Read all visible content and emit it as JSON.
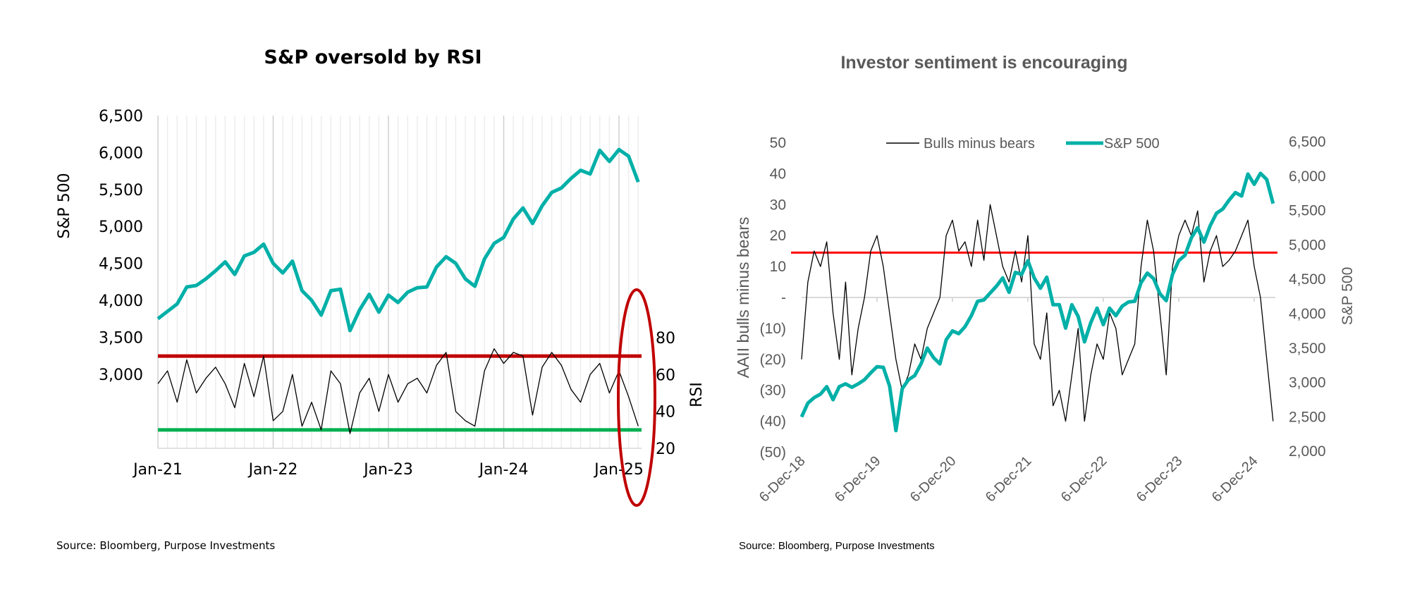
{
  "chart_data": [
    {
      "type": "line",
      "title": "S&P oversold by RSI",
      "ylabel": "S&P 500",
      "y2label": "RSI",
      "xticks": [
        "Jan-21",
        "Jan-22",
        "Jan-23",
        "Jan-24",
        "Jan-25"
      ],
      "yticks": [
        "6,500",
        "6,000",
        "5,500",
        "5,000",
        "4,500",
        "4,000",
        "3,500",
        "3,000"
      ],
      "y2ticks": [
        "80",
        "60",
        "40",
        "20"
      ],
      "ylim": [
        2500,
        6500
      ],
      "y2lim": [
        20,
        80
      ],
      "grid": "vertical",
      "x": [
        "2021-01",
        "2021-02",
        "2021-03",
        "2021-04",
        "2021-05",
        "2021-06",
        "2021-07",
        "2021-08",
        "2021-09",
        "2021-10",
        "2021-11",
        "2021-12",
        "2022-01",
        "2022-02",
        "2022-03",
        "2022-04",
        "2022-05",
        "2022-06",
        "2022-07",
        "2022-08",
        "2022-09",
        "2022-10",
        "2022-11",
        "2022-12",
        "2023-01",
        "2023-02",
        "2023-03",
        "2023-04",
        "2023-05",
        "2023-06",
        "2023-07",
        "2023-08",
        "2023-09",
        "2023-10",
        "2023-11",
        "2023-12",
        "2024-01",
        "2024-02",
        "2024-03",
        "2024-04",
        "2024-05",
        "2024-06",
        "2024-07",
        "2024-08",
        "2024-09",
        "2024-10",
        "2024-11",
        "2024-12",
        "2025-01",
        "2025-02",
        "2025-03"
      ],
      "series": [
        {
          "name": "S&P 500",
          "axis": "left",
          "color": "#00B0A8",
          "values": [
            3750,
            3850,
            3950,
            4180,
            4200,
            4290,
            4400,
            4520,
            4350,
            4600,
            4650,
            4760,
            4500,
            4370,
            4530,
            4130,
            4000,
            3800,
            4130,
            4150,
            3590,
            3870,
            4080,
            3840,
            4070,
            3970,
            4110,
            4170,
            4180,
            4450,
            4590,
            4500,
            4290,
            4190,
            4560,
            4770,
            4850,
            5100,
            5250,
            5040,
            5280,
            5460,
            5520,
            5650,
            5760,
            5710,
            6030,
            5880,
            6040,
            5950,
            5600
          ]
        },
        {
          "name": "RSI",
          "axis": "right",
          "color": "#000000",
          "values": [
            55,
            62,
            45,
            68,
            50,
            58,
            64,
            55,
            42,
            66,
            48,
            70,
            35,
            40,
            60,
            32,
            45,
            30,
            62,
            55,
            28,
            50,
            58,
            40,
            60,
            45,
            55,
            58,
            50,
            65,
            72,
            40,
            35,
            32,
            62,
            74,
            66,
            72,
            70,
            38,
            64,
            72,
            65,
            52,
            45,
            60,
            66,
            50,
            62,
            48,
            32
          ]
        }
      ],
      "reference_lines": [
        {
          "axis": "right",
          "value": 70,
          "color": "#C00000"
        },
        {
          "axis": "right",
          "value": 30,
          "color": "#00B050"
        }
      ],
      "annotation": {
        "shape": "ellipse",
        "color": "#C00000",
        "around": "Jan-25"
      },
      "source": "Source: Bloomberg, Purpose Investments"
    },
    {
      "type": "line",
      "title": "Investor sentiment is encouraging",
      "ylabel": "AAII bulls minus bears",
      "y2label": "S&P 500",
      "xticks": [
        "6-Dec-18",
        "6-Dec-19",
        "6-Dec-20",
        "6-Dec-21",
        "6-Dec-22",
        "6-Dec-23",
        "6-Dec-24"
      ],
      "yticks": [
        "50",
        "40",
        "30",
        "20",
        "10",
        "-",
        "(10)",
        "(20)",
        "(30)",
        "(40)",
        "(50)"
      ],
      "y2ticks": [
        "6,500",
        "6,000",
        "5,500",
        "5,000",
        "4,500",
        "4,000",
        "3,500",
        "3,000",
        "2,500",
        "2,000"
      ],
      "ylim": [
        -50,
        50
      ],
      "y2lim": [
        2000,
        6500
      ],
      "legend": "top",
      "x": [
        "2018-12",
        "2019-01",
        "2019-02",
        "2019-03",
        "2019-04",
        "2019-05",
        "2019-06",
        "2019-07",
        "2019-08",
        "2019-09",
        "2019-10",
        "2019-11",
        "2019-12",
        "2020-01",
        "2020-02",
        "2020-03",
        "2020-04",
        "2020-05",
        "2020-06",
        "2020-07",
        "2020-08",
        "2020-09",
        "2020-10",
        "2020-11",
        "2020-12",
        "2021-01",
        "2021-02",
        "2021-03",
        "2021-04",
        "2021-05",
        "2021-06",
        "2021-07",
        "2021-08",
        "2021-09",
        "2021-10",
        "2021-11",
        "2021-12",
        "2022-01",
        "2022-02",
        "2022-03",
        "2022-04",
        "2022-05",
        "2022-06",
        "2022-07",
        "2022-08",
        "2022-09",
        "2022-10",
        "2022-11",
        "2022-12",
        "2023-01",
        "2023-02",
        "2023-03",
        "2023-04",
        "2023-05",
        "2023-06",
        "2023-07",
        "2023-08",
        "2023-09",
        "2023-10",
        "2023-11",
        "2023-12",
        "2024-01",
        "2024-02",
        "2024-03",
        "2024-04",
        "2024-05",
        "2024-06",
        "2024-07",
        "2024-08",
        "2024-09",
        "2024-10",
        "2024-11",
        "2024-12",
        "2025-01",
        "2025-02",
        "2025-03"
      ],
      "series": [
        {
          "name": "Bulls minus bears",
          "axis": "left",
          "color": "#000000",
          "values": [
            -20,
            5,
            15,
            10,
            18,
            -5,
            -20,
            5,
            -25,
            -10,
            0,
            15,
            20,
            10,
            -5,
            -20,
            -30,
            -25,
            -15,
            -20,
            -10,
            -5,
            0,
            20,
            25,
            15,
            18,
            10,
            25,
            12,
            30,
            20,
            10,
            5,
            15,
            5,
            20,
            -15,
            -20,
            -5,
            -35,
            -30,
            -40,
            -25,
            -10,
            -40,
            -25,
            -15,
            -20,
            -5,
            -10,
            -25,
            -20,
            -15,
            10,
            25,
            15,
            -5,
            -25,
            10,
            20,
            25,
            20,
            28,
            5,
            15,
            20,
            10,
            12,
            15,
            20,
            25,
            10,
            0,
            -20,
            -40
          ]
        },
        {
          "name": "S&P 500",
          "axis": "right",
          "color": "#00B0A8",
          "values": [
            2500,
            2700,
            2780,
            2830,
            2940,
            2750,
            2940,
            2980,
            2930,
            2980,
            3040,
            3140,
            3230,
            3220,
            2950,
            2300,
            2910,
            3040,
            3100,
            3270,
            3500,
            3360,
            3270,
            3620,
            3750,
            3710,
            3810,
            3970,
            4180,
            4200,
            4300,
            4400,
            4520,
            4310,
            4600,
            4570,
            4770,
            4520,
            4370,
            4530,
            4130,
            4130,
            3790,
            4130,
            3960,
            3590,
            3870,
            4080,
            3840,
            4080,
            3970,
            4110,
            4170,
            4180,
            4450,
            4590,
            4510,
            4290,
            4190,
            4570,
            4770,
            4850,
            5100,
            5250,
            5040,
            5280,
            5460,
            5520,
            5650,
            5760,
            5710,
            6030,
            5880,
            6040,
            5950,
            5600
          ]
        }
      ],
      "reference_lines": [
        {
          "axis": "left",
          "value": 14.5,
          "color": "#FF0000"
        }
      ],
      "source": "Source: Bloomberg, Purpose Investments"
    }
  ]
}
